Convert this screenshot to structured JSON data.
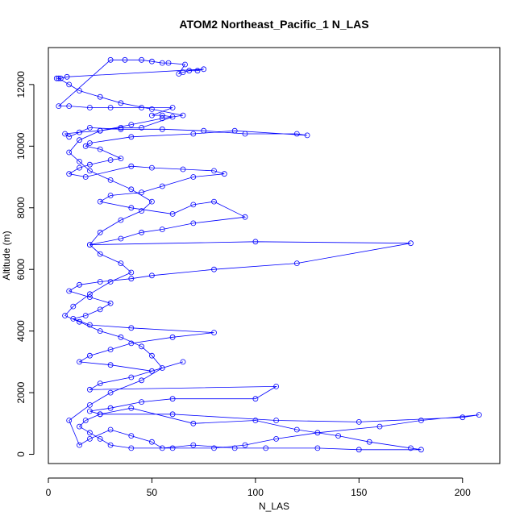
{
  "chart_data": {
    "type": "line",
    "title": "ATOM2 Northeast_Pacific_1 N_LAS",
    "xlabel": "N_LAS",
    "ylabel": "Altitude (m)",
    "xlim": [
      0,
      218
    ],
    "ylim": [
      -300,
      13200
    ],
    "x_ticks": [
      0,
      50,
      100,
      150,
      200
    ],
    "y_ticks": [
      0,
      2000,
      4000,
      6000,
      8000,
      10000,
      12000
    ],
    "grid": false,
    "series": [
      {
        "color": "#0000ff",
        "points": [
          [
            4,
            12200
          ],
          [
            6,
            12200
          ],
          [
            9,
            12250
          ],
          [
            75,
            12500
          ],
          [
            72,
            12450
          ],
          [
            68,
            12450
          ],
          [
            65,
            12400
          ],
          [
            63,
            12350
          ],
          [
            66,
            12650
          ],
          [
            58,
            12700
          ],
          [
            55,
            12700
          ],
          [
            50,
            12750
          ],
          [
            45,
            12800
          ],
          [
            37,
            12800
          ],
          [
            30,
            12800
          ],
          [
            5,
            11300
          ],
          [
            10,
            11300
          ],
          [
            20,
            11250
          ],
          [
            30,
            11250
          ],
          [
            45,
            11250
          ],
          [
            60,
            11250
          ],
          [
            50,
            11000
          ],
          [
            55,
            11000
          ],
          [
            60,
            10950
          ],
          [
            45,
            10600
          ],
          [
            35,
            10600
          ],
          [
            25,
            10500
          ],
          [
            15,
            10450
          ],
          [
            8,
            10400
          ],
          [
            10,
            10300
          ],
          [
            20,
            10600
          ],
          [
            35,
            10550
          ],
          [
            55,
            10550
          ],
          [
            75,
            10500
          ],
          [
            95,
            10400
          ],
          [
            120,
            10400
          ],
          [
            125,
            10350
          ],
          [
            90,
            10500
          ],
          [
            70,
            10400
          ],
          [
            40,
            10300
          ],
          [
            20,
            10100
          ],
          [
            18,
            10000
          ],
          [
            25,
            9900
          ],
          [
            35,
            9600
          ],
          [
            30,
            9550
          ],
          [
            20,
            9400
          ],
          [
            15,
            9300
          ],
          [
            10,
            9100
          ],
          [
            18,
            9000
          ],
          [
            40,
            9350
          ],
          [
            50,
            9300
          ],
          [
            65,
            9250
          ],
          [
            80,
            9200
          ],
          [
            85,
            9100
          ],
          [
            70,
            9000
          ],
          [
            55,
            8700
          ],
          [
            45,
            8500
          ],
          [
            30,
            8400
          ],
          [
            25,
            8200
          ],
          [
            40,
            8000
          ],
          [
            60,
            7800
          ],
          [
            70,
            8100
          ],
          [
            80,
            8200
          ],
          [
            95,
            7700
          ],
          [
            70,
            7500
          ],
          [
            55,
            7300
          ],
          [
            45,
            7200
          ],
          [
            35,
            7000
          ],
          [
            20,
            6800
          ],
          [
            100,
            6900
          ],
          [
            175,
            6850
          ],
          [
            120,
            6200
          ],
          [
            80,
            6000
          ],
          [
            50,
            5800
          ],
          [
            40,
            5700
          ],
          [
            25,
            5600
          ],
          [
            15,
            5500
          ],
          [
            10,
            5300
          ],
          [
            20,
            5100
          ],
          [
            30,
            4900
          ],
          [
            25,
            4700
          ],
          [
            18,
            4500
          ],
          [
            12,
            4400
          ],
          [
            20,
            4200
          ],
          [
            40,
            4100
          ],
          [
            80,
            3950
          ],
          [
            60,
            3800
          ],
          [
            40,
            3600
          ],
          [
            30,
            3400
          ],
          [
            20,
            3200
          ],
          [
            15,
            3000
          ],
          [
            30,
            2900
          ],
          [
            50,
            2700
          ],
          [
            65,
            3000
          ],
          [
            40,
            2500
          ],
          [
            25,
            2300
          ],
          [
            20,
            2100
          ],
          [
            110,
            2200
          ],
          [
            100,
            1800
          ],
          [
            60,
            1800
          ],
          [
            45,
            1700
          ],
          [
            30,
            1500
          ],
          [
            20,
            1400
          ],
          [
            25,
            1300
          ],
          [
            60,
            1300
          ],
          [
            110,
            1100
          ],
          [
            150,
            1050
          ],
          [
            200,
            1200
          ],
          [
            208,
            1280
          ],
          [
            180,
            1100
          ],
          [
            160,
            900
          ],
          [
            130,
            700
          ],
          [
            110,
            500
          ],
          [
            95,
            300
          ],
          [
            80,
            200
          ],
          [
            60,
            200
          ],
          [
            40,
            200
          ],
          [
            30,
            300
          ],
          [
            25,
            500
          ],
          [
            20,
            700
          ],
          [
            15,
            900
          ],
          [
            18,
            1100
          ],
          [
            25,
            1300
          ],
          [
            40,
            1500
          ],
          [
            70,
            1000
          ],
          [
            100,
            1100
          ],
          [
            120,
            800
          ],
          [
            140,
            600
          ],
          [
            155,
            400
          ],
          [
            175,
            200
          ],
          [
            180,
            150
          ],
          [
            150,
            150
          ],
          [
            130,
            200
          ],
          [
            105,
            200
          ],
          [
            90,
            200
          ],
          [
            70,
            300
          ],
          [
            55,
            200
          ],
          [
            50,
            400
          ],
          [
            40,
            600
          ],
          [
            30,
            800
          ],
          [
            20,
            500
          ],
          [
            15,
            300
          ],
          [
            10,
            1100
          ],
          [
            20,
            1600
          ],
          [
            30,
            2000
          ],
          [
            45,
            2400
          ],
          [
            55,
            2800
          ],
          [
            50,
            3200
          ],
          [
            45,
            3500
          ],
          [
            35,
            3800
          ],
          [
            25,
            4000
          ],
          [
            15,
            4300
          ],
          [
            8,
            4500
          ],
          [
            12,
            4800
          ],
          [
            20,
            5200
          ],
          [
            30,
            5600
          ],
          [
            40,
            5900
          ],
          [
            35,
            6200
          ],
          [
            25,
            6500
          ],
          [
            20,
            6800
          ],
          [
            25,
            7200
          ],
          [
            35,
            7600
          ],
          [
            45,
            7900
          ],
          [
            50,
            8200
          ],
          [
            40,
            8600
          ],
          [
            30,
            8900
          ],
          [
            20,
            9200
          ],
          [
            15,
            9500
          ],
          [
            10,
            9800
          ],
          [
            15,
            10200
          ],
          [
            25,
            10500
          ],
          [
            40,
            10700
          ],
          [
            55,
            10900
          ],
          [
            65,
            11000
          ],
          [
            50,
            11200
          ],
          [
            35,
            11400
          ],
          [
            25,
            11600
          ],
          [
            15,
            11800
          ],
          [
            10,
            12000
          ],
          [
            5,
            12200
          ]
        ]
      }
    ]
  }
}
